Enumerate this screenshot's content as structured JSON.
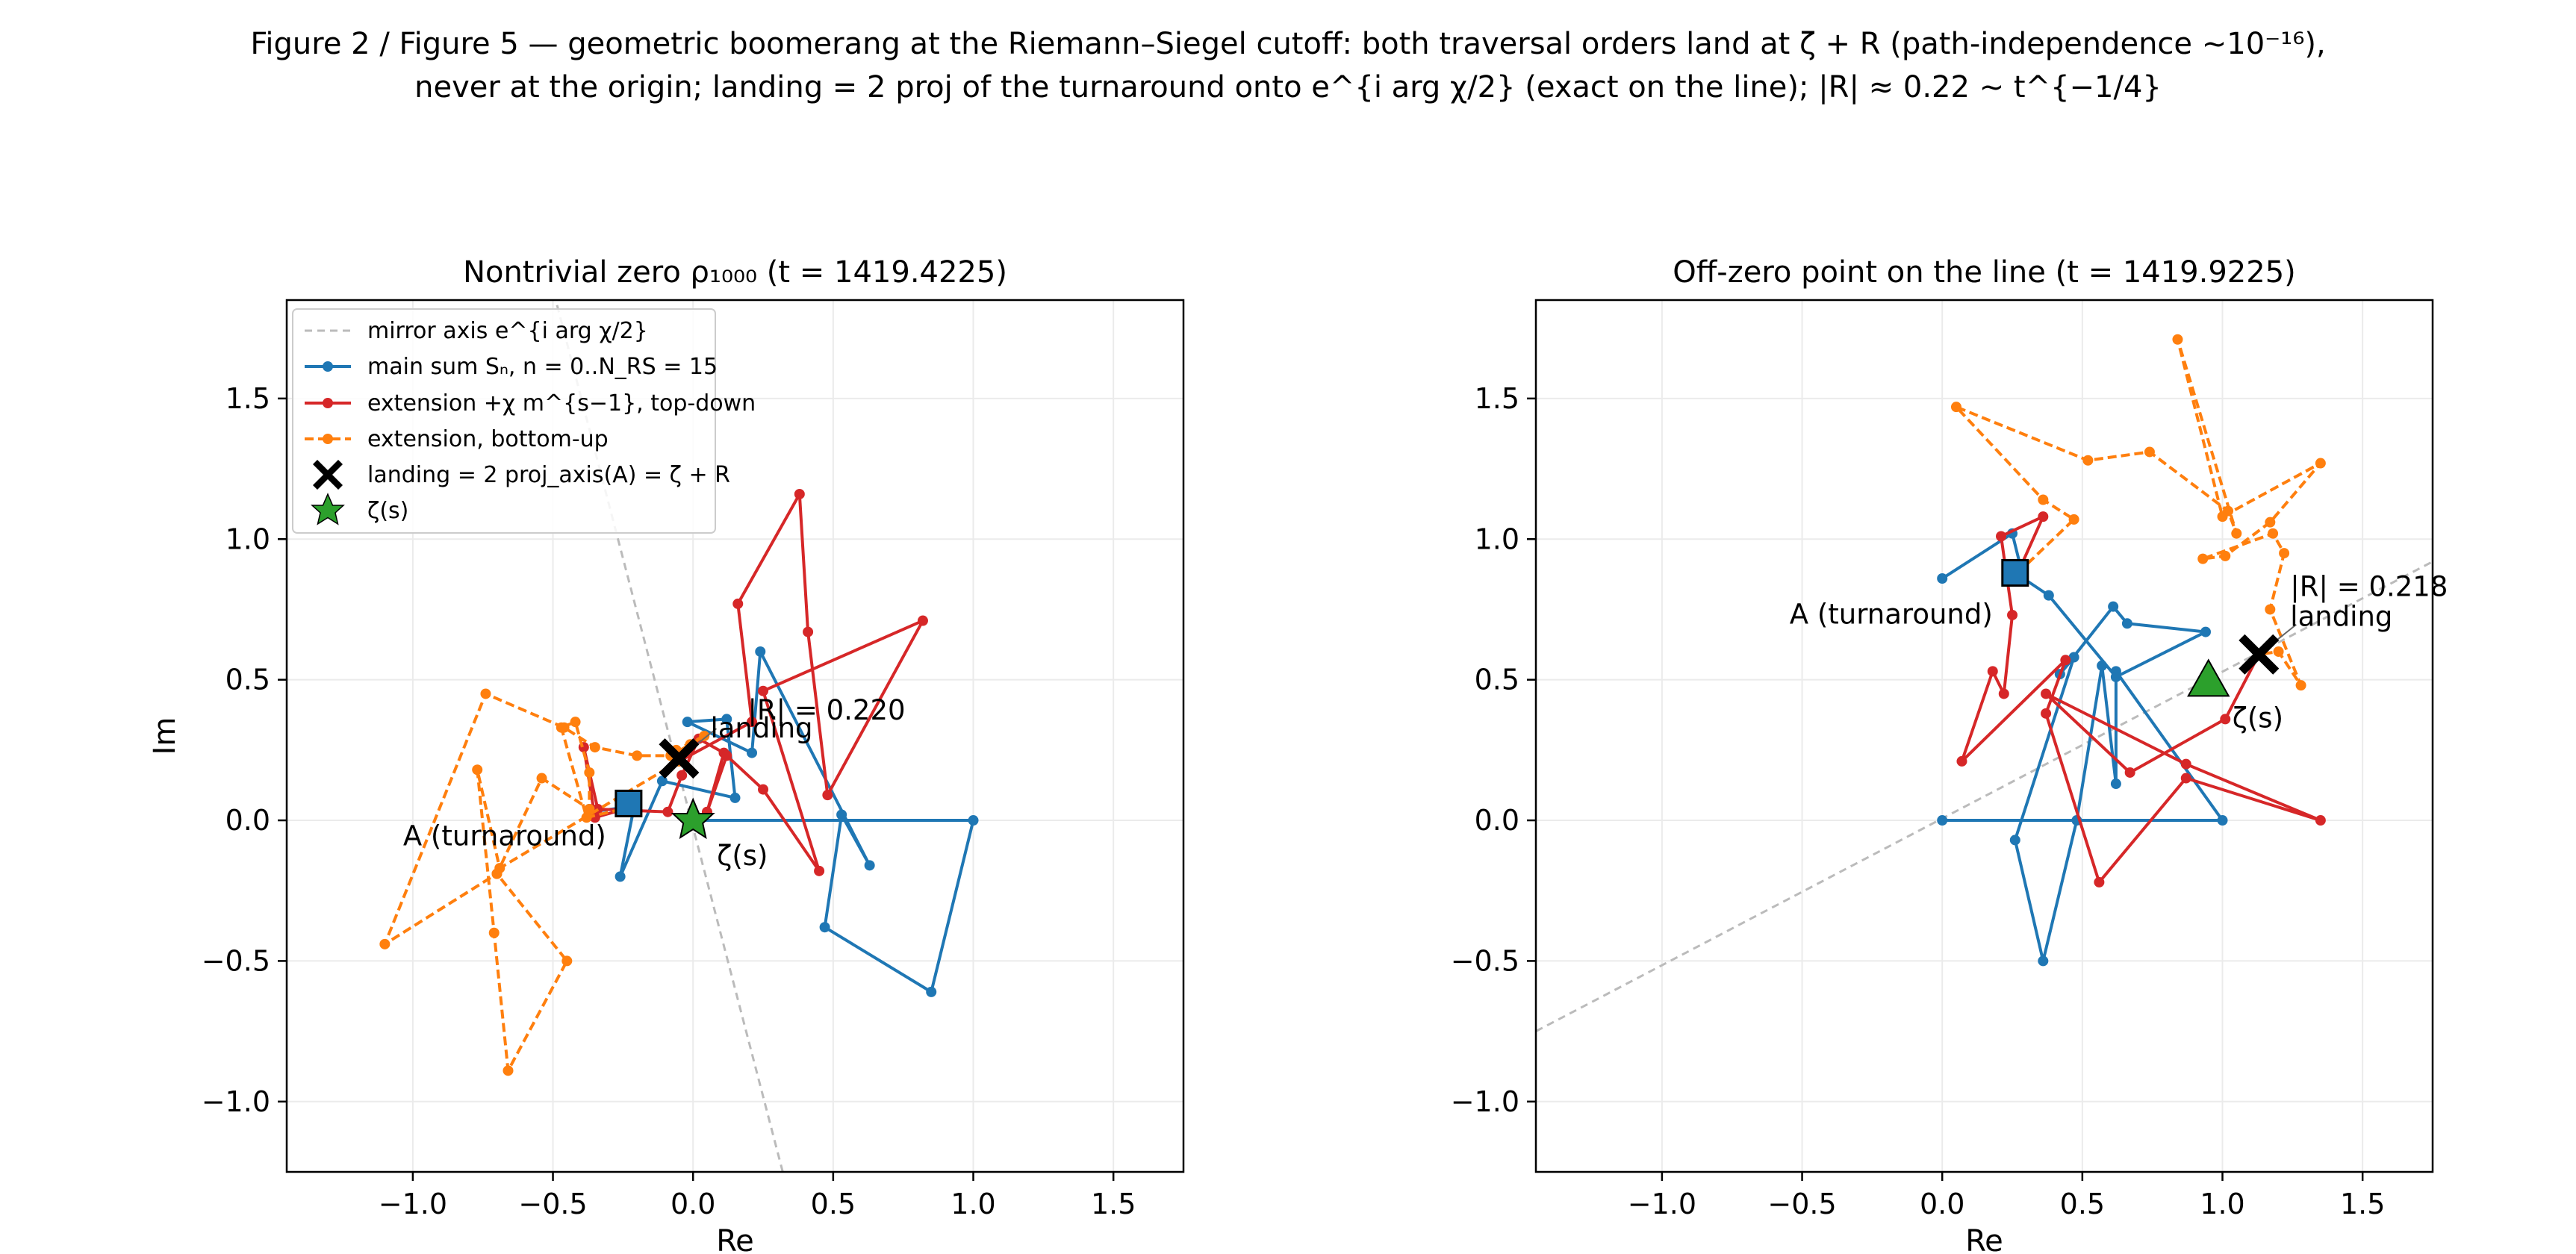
{
  "figure": {
    "suptitle_line1": "Figure 2 / Figure 5 — geometric boomerang at the Riemann–Siegel cutoff:  both traversal orders land at ζ + R (path-independence ~10⁻¹⁶),",
    "suptitle_line2": "never at the origin;  landing = 2 proj of the turnaround onto e^{i arg χ/2} (exact on the line);  |R| ≈ 0.22 ~ t^{−1/4}"
  },
  "legend": {
    "mirror": "mirror axis e^{i arg χ/2}",
    "main": "main sum Sₙ, n = 0..N_RS = 15",
    "ext_top": "extension +χ m^{s−1}, top-down",
    "ext_bottom": "extension, bottom-up",
    "landing": "landing = 2 proj_axis(A) = ζ + R",
    "zeta": "ζ(s)"
  },
  "colors": {
    "main": "#1f77b4",
    "ext_top": "#d62728",
    "ext_bottom": "#ff7f0e",
    "mirror": "#bbbbbb",
    "zeta_star": "#2ca02c",
    "turnaround": "#1f77b4",
    "landing": "#000000"
  },
  "chart_data": [
    {
      "type": "line",
      "title": "Nontrivial zero ρ₁₀₀₀  (t = 1419.4225)",
      "xlabel": "Re",
      "ylabel": "Im",
      "xlim": [
        -1.45,
        1.75
      ],
      "ylim": [
        -1.25,
        1.85
      ],
      "xticks": [
        -1.0,
        -0.5,
        0.0,
        0.5,
        1.0,
        1.5
      ],
      "yticks": [
        -1.0,
        -0.5,
        0.0,
        0.5,
        1.0,
        1.5
      ],
      "xtick_labels": [
        "−1.0",
        "−0.5",
        "0.0",
        "0.5",
        "1.0",
        "1.5"
      ],
      "ytick_labels": [
        "−1.0",
        "−0.5",
        "0.0",
        "0.5",
        "1.0",
        "1.5"
      ],
      "grid": true,
      "legend_position": "upper-left",
      "mirror_axis": [
        [
          0.32,
          -1.25
        ],
        [
          -0.49,
          1.85
        ]
      ],
      "series": [
        {
          "key": "main",
          "name": "main sum Sₙ, n = 0..N_RS = 15",
          "style": "solid",
          "points": [
            [
              0,
              0
            ],
            [
              1.0,
              0
            ],
            [
              0.85,
              -0.61
            ],
            [
              0.47,
              -0.38
            ],
            [
              0.53,
              0.02
            ],
            [
              0.63,
              -0.16
            ],
            [
              0.24,
              0.6
            ],
            [
              0.21,
              0.24
            ],
            [
              -0.02,
              0.35
            ],
            [
              0.12,
              0.36
            ],
            [
              0.15,
              0.08
            ],
            [
              -0.11,
              0.14
            ],
            [
              -0.26,
              -0.2
            ],
            [
              -0.21,
              0.05
            ],
            [
              -0.37,
              0.03
            ],
            [
              -0.37,
              0.04
            ]
          ]
        },
        {
          "key": "ext_top",
          "name": "extension +χ m^{s−1}, top-down",
          "style": "solid",
          "points": [
            [
              -0.21,
              0.05
            ],
            [
              -0.35,
              0.01
            ],
            [
              -0.39,
              0.26
            ],
            [
              -0.34,
              0.04
            ],
            [
              -0.09,
              0.03
            ],
            [
              -0.04,
              0.16
            ],
            [
              0.02,
              0.29
            ],
            [
              0.11,
              0.24
            ],
            [
              0.05,
              0.03
            ],
            [
              0.12,
              0.23
            ],
            [
              0.25,
              0.11
            ],
            [
              0.45,
              -0.18
            ],
            [
              0.25,
              0.46
            ],
            [
              0.82,
              0.71
            ],
            [
              0.48,
              0.09
            ],
            [
              0.41,
              0.67
            ],
            [
              0.38,
              1.16
            ],
            [
              0.16,
              0.77
            ],
            [
              0.21,
              0.35
            ],
            [
              -0.05,
              0.21
            ]
          ]
        },
        {
          "key": "ext_bottom",
          "name": "extension, bottom-up",
          "style": "dashed",
          "points": [
            [
              -0.21,
              0.05
            ],
            [
              -0.38,
              0.01
            ],
            [
              -0.47,
              0.33
            ],
            [
              -0.42,
              0.35
            ],
            [
              -0.37,
              0.17
            ],
            [
              -0.37,
              0.04
            ],
            [
              -0.54,
              0.15
            ],
            [
              -0.7,
              -0.19
            ],
            [
              -1.1,
              -0.44
            ],
            [
              -0.74,
              0.45
            ],
            [
              -0.46,
              0.33
            ],
            [
              -0.35,
              0.26
            ],
            [
              -0.2,
              0.23
            ],
            [
              -0.08,
              0.23
            ],
            [
              -0.01,
              0.27
            ],
            [
              0.04,
              0.3
            ],
            [
              -0.06,
              0.25
            ]
          ],
          "points2": [
            [
              -0.05,
              0.21
            ],
            [
              -0.05,
              0.21
            ],
            [
              -0.69,
              -0.17
            ],
            [
              -0.77,
              0.18
            ],
            [
              -0.71,
              -0.4
            ],
            [
              -0.66,
              -0.89
            ],
            [
              -0.45,
              -0.5
            ],
            [
              -0.7,
              -0.19
            ]
          ]
        }
      ],
      "turnaround": {
        "x": -0.23,
        "y": 0.06,
        "label": "A (turnaround)"
      },
      "landing": {
        "x": -0.05,
        "y": 0.22,
        "label": "landing",
        "R_label": "|R| = 0.220"
      },
      "zeta": {
        "x": 0.0,
        "y": 0.0,
        "label": "ζ(s)"
      }
    },
    {
      "type": "line",
      "title": "Off-zero point on the line  (t = 1419.9225)",
      "xlabel": "Re",
      "ylabel": "",
      "xlim": [
        -1.45,
        1.75
      ],
      "ylim": [
        -1.25,
        1.85
      ],
      "xticks": [
        -1.0,
        -0.5,
        0.0,
        0.5,
        1.0,
        1.5
      ],
      "yticks": [
        -1.0,
        -0.5,
        0.0,
        0.5,
        1.0,
        1.5
      ],
      "xtick_labels": [
        "−1.0",
        "−0.5",
        "0.0",
        "0.5",
        "1.0",
        "1.5"
      ],
      "ytick_labels": [
        "−1.0",
        "−0.5",
        "0.0",
        "0.5",
        "1.0",
        "1.5"
      ],
      "grid": true,
      "mirror_axis": [
        [
          -1.45,
          -0.75
        ],
        [
          1.75,
          0.92
        ]
      ],
      "series": [
        {
          "key": "main",
          "name": "main sum Sₙ, n = 0..N_RS = 15",
          "style": "solid",
          "points": [
            [
              0,
              0
            ],
            [
              1.0,
              0
            ],
            [
              0.62,
              0.53
            ],
            [
              0.62,
              0.13
            ],
            [
              0.57,
              0.55
            ],
            [
              0.48,
              0.0
            ],
            [
              0.36,
              -0.5
            ],
            [
              0.26,
              -0.07
            ],
            [
              0.47,
              0.58
            ],
            [
              0.42,
              0.52
            ],
            [
              0.61,
              0.76
            ],
            [
              0.66,
              0.7
            ],
            [
              0.94,
              0.67
            ],
            [
              0.62,
              0.51
            ],
            [
              0.38,
              0.8
            ],
            [
              0.29,
              0.86
            ],
            [
              0.25,
              1.02
            ],
            [
              0.0,
              0.86
            ]
          ]
        },
        {
          "key": "ext_top",
          "name": "extension +χ m^{s−1}, top-down",
          "style": "solid",
          "points": [
            [
              0.27,
              0.88
            ],
            [
              0.36,
              1.08
            ],
            [
              0.21,
              1.01
            ],
            [
              0.25,
              0.73
            ],
            [
              0.22,
              0.45
            ],
            [
              0.18,
              0.53
            ],
            [
              0.07,
              0.21
            ],
            [
              0.44,
              0.57
            ],
            [
              0.37,
              0.38
            ],
            [
              0.56,
              -0.22
            ],
            [
              0.87,
              0.15
            ],
            [
              1.35,
              0.0
            ],
            [
              0.87,
              0.2
            ],
            [
              0.37,
              0.45
            ],
            [
              0.67,
              0.17
            ],
            [
              1.01,
              0.36
            ],
            [
              1.13,
              0.59
            ]
          ]
        },
        {
          "key": "ext_bottom",
          "name": "extension, bottom-up",
          "style": "dashed",
          "points": [
            [
              0.27,
              0.88
            ],
            [
              0.47,
              1.07
            ],
            [
              0.36,
              1.14
            ],
            [
              0.05,
              1.47
            ],
            [
              0.52,
              1.28
            ],
            [
              0.74,
              1.31
            ],
            [
              1.02,
              1.1
            ],
            [
              1.05,
              1.02
            ],
            [
              0.84,
              1.71
            ],
            [
              1.0,
              1.08
            ],
            [
              1.35,
              1.27
            ],
            [
              1.17,
              1.06
            ],
            [
              1.01,
              0.94
            ],
            [
              0.93,
              0.93
            ],
            [
              1.18,
              1.02
            ],
            [
              1.22,
              0.95
            ],
            [
              1.17,
              0.75
            ],
            [
              1.28,
              0.48
            ],
            [
              1.2,
              0.6
            ],
            [
              1.13,
              0.59
            ]
          ]
        }
      ],
      "turnaround": {
        "x": 0.26,
        "y": 0.88,
        "label": "A (turnaround)"
      },
      "landing": {
        "x": 1.13,
        "y": 0.59,
        "label": "landing",
        "R_label": "|R| = 0.218"
      },
      "zeta": {
        "x": 0.95,
        "y": 0.49,
        "label": "ζ(s)"
      }
    }
  ]
}
